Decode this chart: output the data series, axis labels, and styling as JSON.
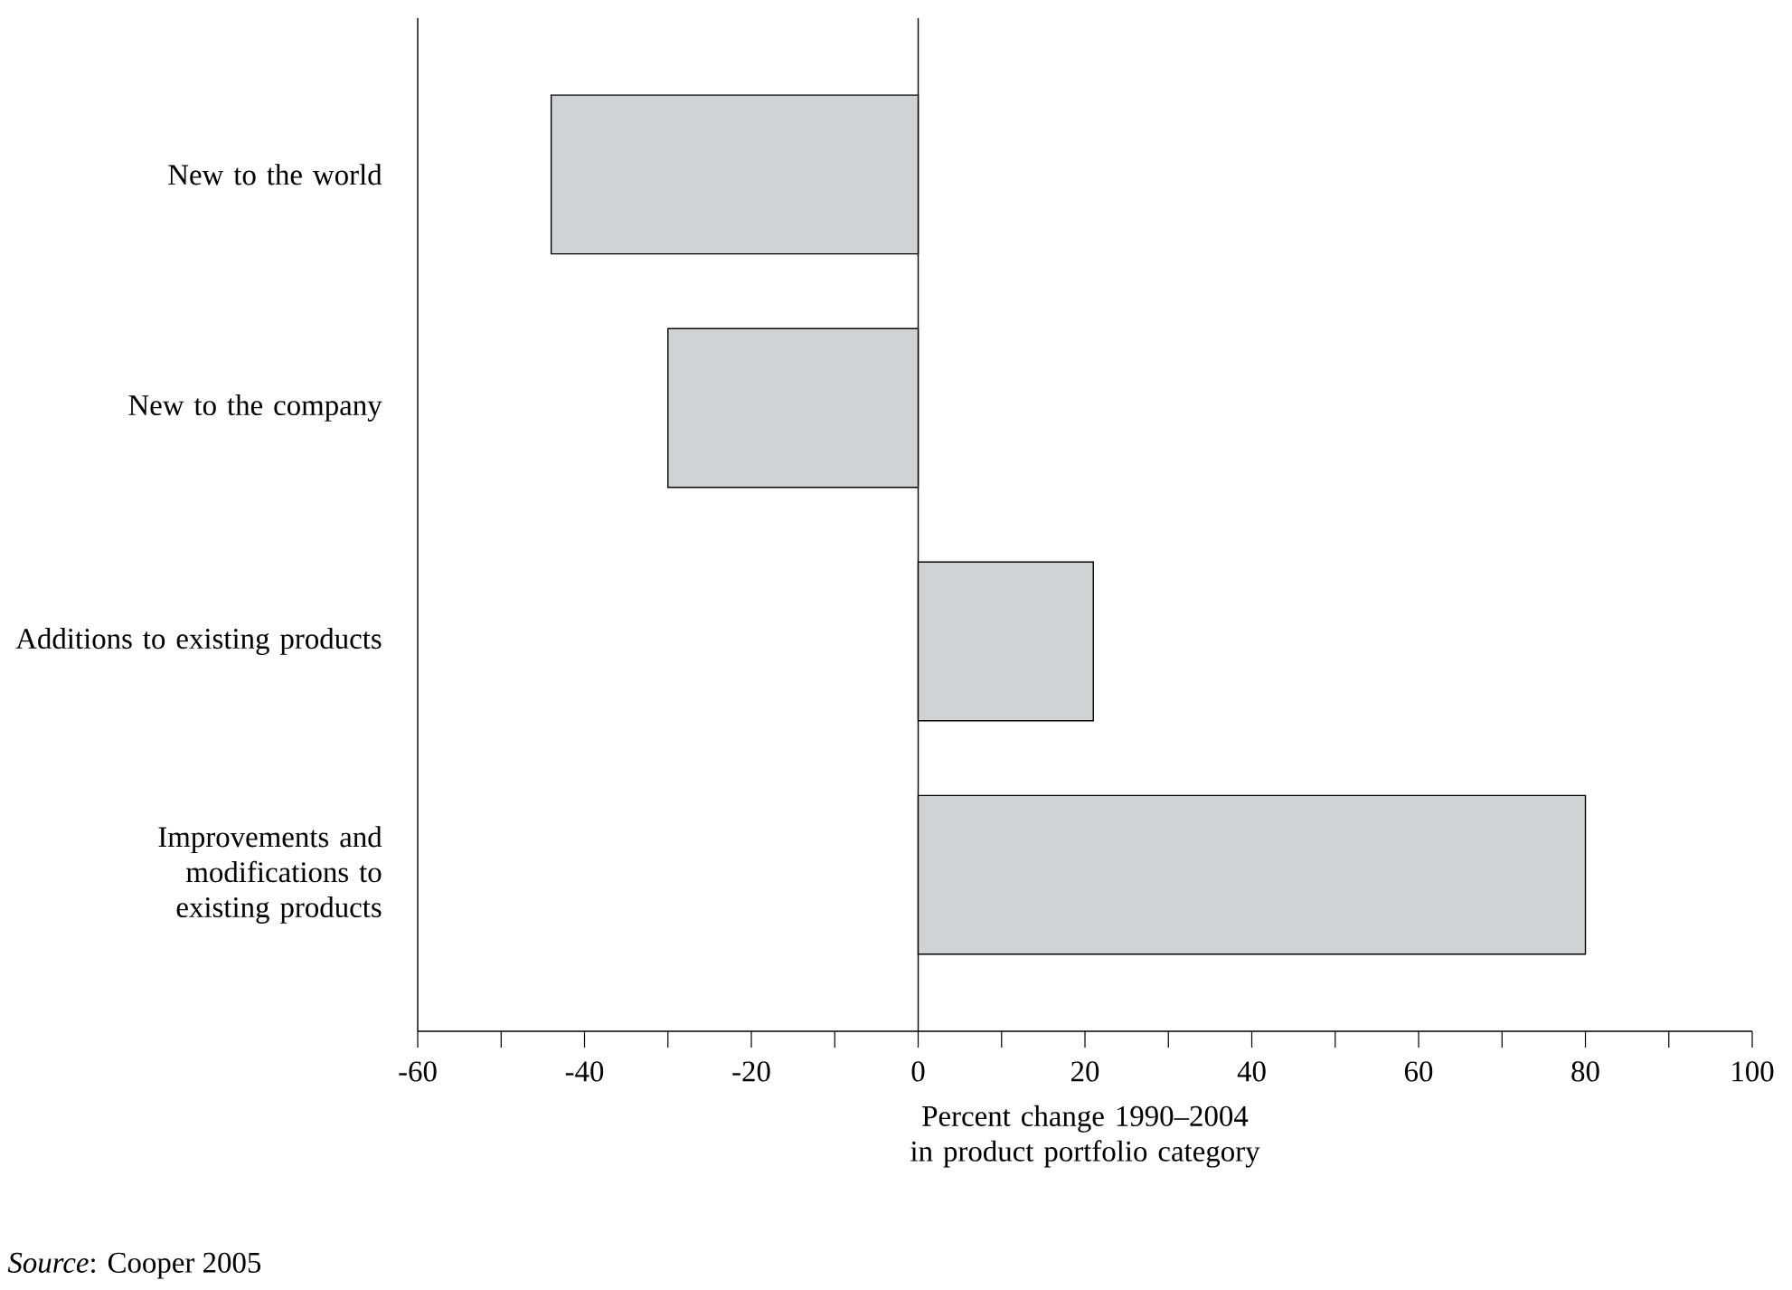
{
  "chart_data": {
    "type": "bar",
    "orientation": "horizontal",
    "categories": [
      "New to the world",
      "New to the company",
      "Additions to existing products",
      "Improvements and modifications to existing products"
    ],
    "values": [
      -44,
      -30,
      21,
      80
    ],
    "color": "#d1d2d4",
    "xlim": [
      -60,
      100
    ],
    "xticks": [
      -60,
      {
        "value": -50,
        "label": null
      },
      -40,
      {
        "value": -30,
        "label": null
      },
      -20,
      {
        "value": -10,
        "label": null
      },
      0,
      {
        "value": 10,
        "label": null
      },
      20,
      {
        "value": 30,
        "label": null
      },
      40,
      {
        "value": 50,
        "label": null
      },
      60,
      {
        "value": 70,
        "label": null
      },
      80,
      {
        "value": 90,
        "label": null
      },
      100
    ],
    "xlabel": "Percent change 1990–2004 in product portfolio category",
    "ref_lines": [
      {
        "axis": "x",
        "value": 0
      }
    ],
    "annotations": [
      "*Source*: Cooper 2005"
    ]
  }
}
